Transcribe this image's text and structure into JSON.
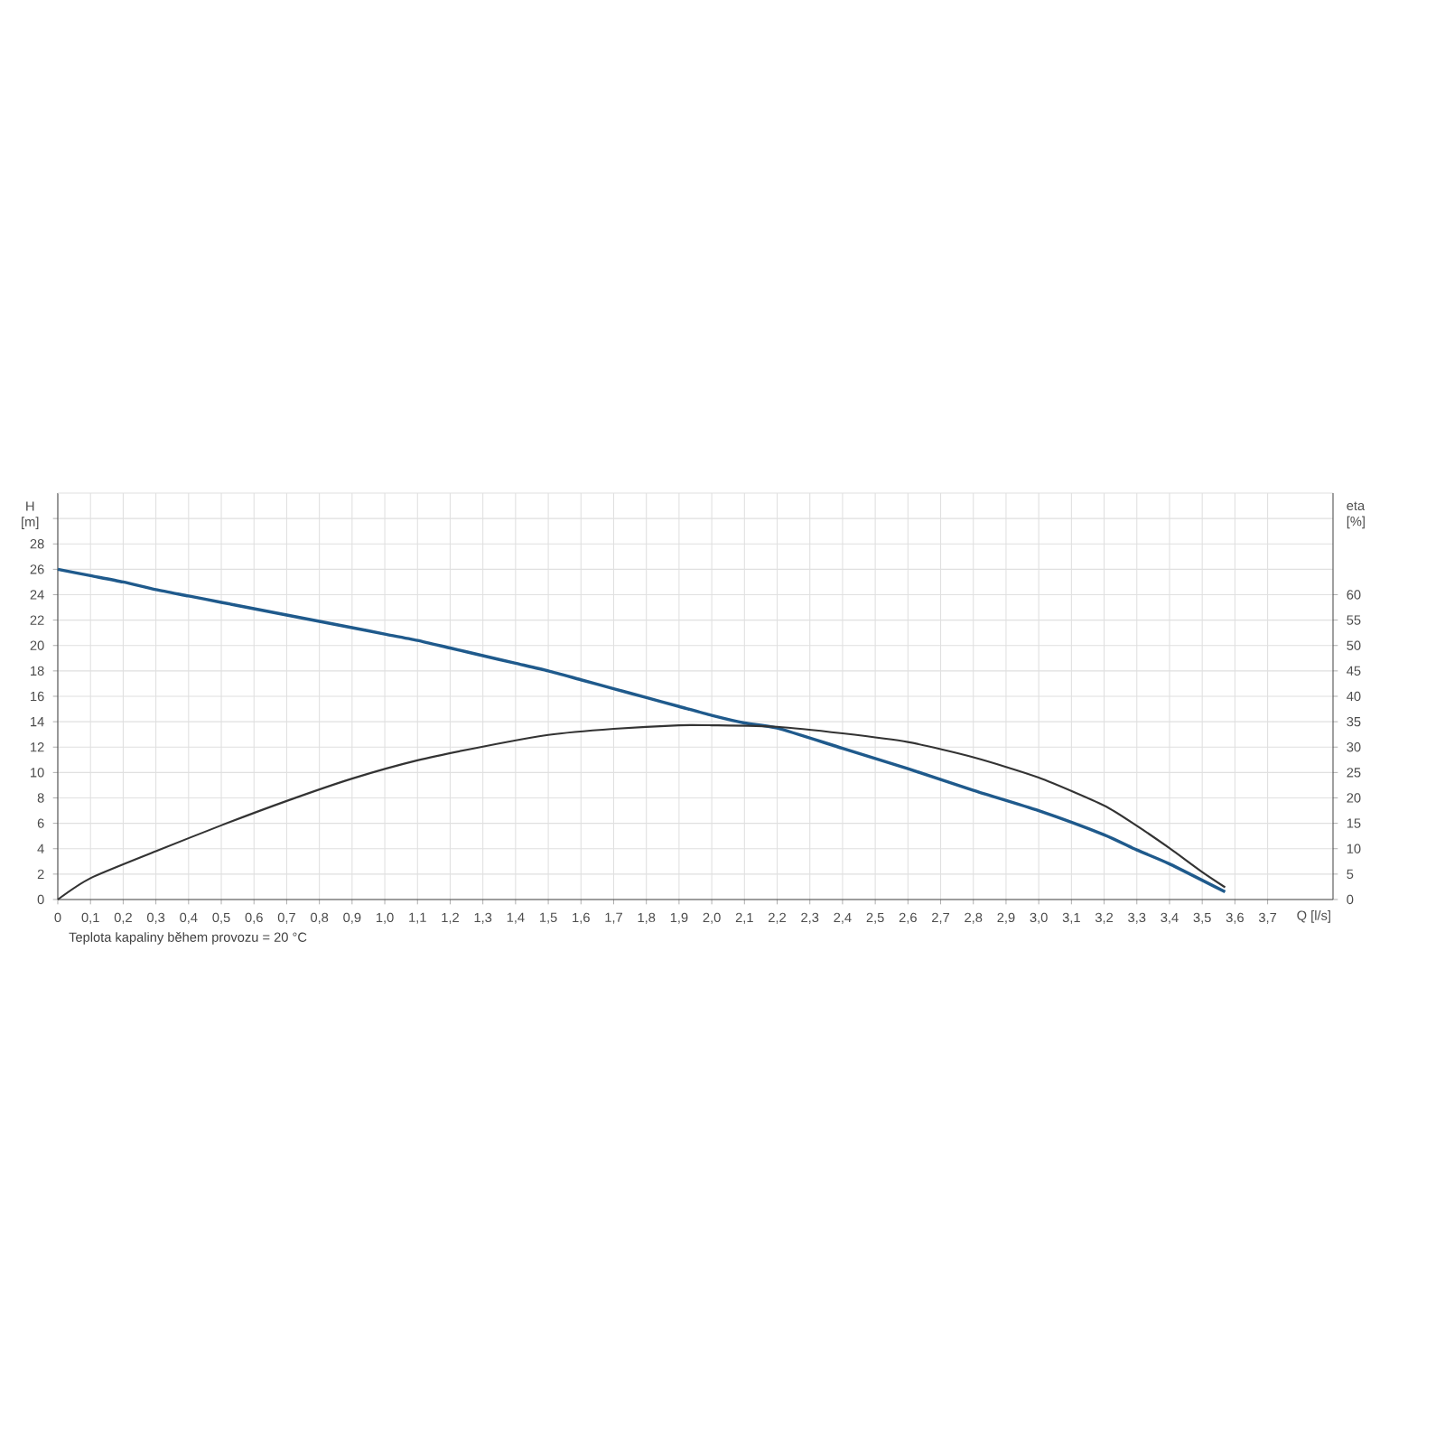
{
  "chart_data": {
    "type": "line",
    "xlabel": "Q [l/s]",
    "ylabel": "H [m]",
    "y2label": "eta [%]",
    "annotations": [
      "Teplota kapaliny během provozu = 20 °C"
    ],
    "xlim": [
      0,
      3.9
    ],
    "ylim": [
      0,
      32
    ],
    "y2lim": [
      0,
      80
    ],
    "xticks": [
      0,
      {
        "value": 0.1,
        "label": "0,1"
      },
      {
        "value": 0.2,
        "label": "0,2"
      },
      {
        "value": 0.3,
        "label": "0,3"
      },
      {
        "value": 0.4,
        "label": "0,4"
      },
      {
        "value": 0.5,
        "label": "0,5"
      },
      {
        "value": 0.6,
        "label": "0,6"
      },
      {
        "value": 0.7,
        "label": "0,7"
      },
      {
        "value": 0.8,
        "label": "0,8"
      },
      {
        "value": 0.9,
        "label": "0,9"
      },
      {
        "value": 1.0,
        "label": "1,0"
      },
      {
        "value": 1.1,
        "label": "1,1"
      },
      {
        "value": 1.2,
        "label": "1,2"
      },
      {
        "value": 1.3,
        "label": "1,3"
      },
      {
        "value": 1.4,
        "label": "1,4"
      },
      {
        "value": 1.5,
        "label": "1,5"
      },
      {
        "value": 1.6,
        "label": "1,6"
      },
      {
        "value": 1.7,
        "label": "1,7"
      },
      {
        "value": 1.8,
        "label": "1,8"
      },
      {
        "value": 1.9,
        "label": "1,9"
      },
      {
        "value": 2.0,
        "label": "2,0"
      },
      {
        "value": 2.1,
        "label": "2,1"
      },
      {
        "value": 2.2,
        "label": "2,2"
      },
      {
        "value": 2.3,
        "label": "2,3"
      },
      {
        "value": 2.4,
        "label": "2,4"
      },
      {
        "value": 2.5,
        "label": "2,5"
      },
      {
        "value": 2.6,
        "label": "2,6"
      },
      {
        "value": 2.7,
        "label": "2,7"
      },
      {
        "value": 2.8,
        "label": "2,8"
      },
      {
        "value": 2.9,
        "label": "2,9"
      },
      {
        "value": 3.0,
        "label": "3,0"
      },
      {
        "value": 3.1,
        "label": "3,1"
      },
      {
        "value": 3.2,
        "label": "3,2"
      },
      {
        "value": 3.3,
        "label": "3,3"
      },
      {
        "value": 3.4,
        "label": "3,4"
      },
      {
        "value": 3.5,
        "label": "3,5"
      },
      {
        "value": 3.6,
        "label": "3,6"
      },
      {
        "value": 3.7,
        "label": "3,7"
      }
    ],
    "yticks": [
      0,
      2,
      4,
      6,
      8,
      10,
      12,
      14,
      16,
      18,
      20,
      22,
      24,
      26,
      28,
      {
        "value": 30,
        "label": null
      }
    ],
    "y2ticks": [
      0,
      5,
      10,
      15,
      20,
      25,
      30,
      35,
      40,
      45,
      50,
      55,
      60
    ],
    "grid": true,
    "series": [
      {
        "color": "#1f5a8c",
        "x": [
          0,
          0.1,
          0.2,
          0.3,
          0.4,
          0.5,
          0.6,
          0.7,
          0.8,
          0.9,
          1.0,
          1.1,
          1.2,
          1.3,
          1.4,
          1.5,
          1.6,
          1.7,
          1.8,
          1.9,
          2.0,
          2.1,
          2.2,
          2.4,
          2.6,
          2.8,
          3.0,
          3.2,
          3.3,
          3.4,
          3.57
        ],
        "values": [
          26,
          25.5,
          25.0,
          24.4,
          23.9,
          23.4,
          22.9,
          22.4,
          21.9,
          21.4,
          20.9,
          20.4,
          19.8,
          19.2,
          18.6,
          18.0,
          17.3,
          16.6,
          15.9,
          15.2,
          14.5,
          13.9,
          13.5,
          11.9,
          10.3,
          8.6,
          7.0,
          5.1,
          3.9,
          2.8,
          0.6
        ]
      },
      {
        "color": "#333333",
        "axis": "y2",
        "x": [
          0,
          0.1,
          0.3,
          0.5,
          0.7,
          0.9,
          1.1,
          1.3,
          1.5,
          1.7,
          1.9,
          2.0,
          2.2,
          2.4,
          2.6,
          2.8,
          3.0,
          3.2,
          3.3,
          3.4,
          3.5,
          3.57
        ],
        "values": [
          0,
          4.2,
          9.5,
          14.6,
          19.4,
          23.8,
          27.4,
          30.1,
          32.4,
          33.6,
          34.3,
          34.3,
          34,
          32.7,
          31.0,
          28,
          24,
          18.5,
          14.5,
          10.1,
          5.4,
          2.4
        ]
      }
    ]
  }
}
